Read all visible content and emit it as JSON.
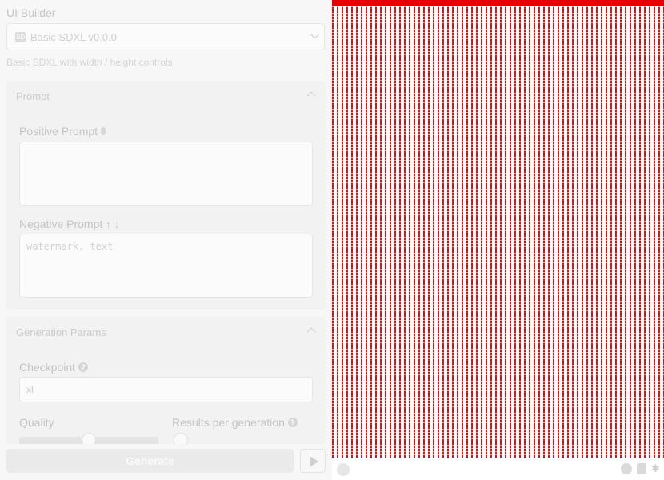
{
  "builder": {
    "label": "UI Builder",
    "selected": "Basic SDXL v0.0.0",
    "description": "Basic SDXL with width / height controls"
  },
  "prompt_panel": {
    "title": "Prompt",
    "positive_label": "Positive Prompt",
    "positive_value": "",
    "negative_label": "Negative Prompt",
    "negative_placeholder": "watermark, text"
  },
  "params_panel": {
    "title": "Generation Params",
    "checkpoint_label": "Checkpoint",
    "checkpoint_value": "xl",
    "quality_label": "Quality",
    "results_label": "Results per generation"
  },
  "actions": {
    "generate_label": "Generate"
  },
  "preview": {
    "colors": {
      "stripe": "#e01010",
      "background": "#ffffff"
    }
  },
  "icons": [
    "mic-icon",
    "arrow-up-icon",
    "arrow-down-icon",
    "help-icon",
    "chevron-up-icon",
    "play-icon",
    "github-icon",
    "doc-icon",
    "bug-icon"
  ]
}
